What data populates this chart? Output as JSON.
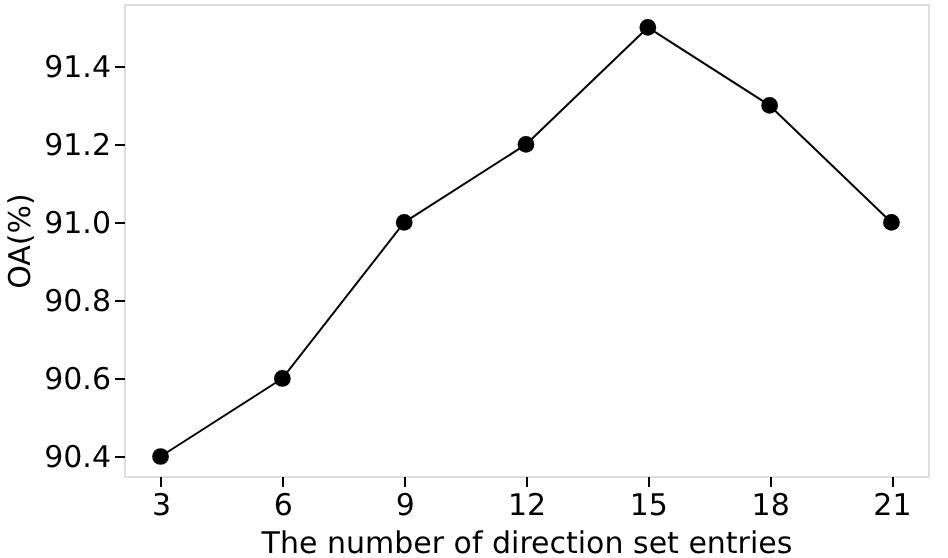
{
  "chart_data": {
    "type": "line",
    "xlabel": "The number of direction set entries",
    "ylabel": "OA(%)",
    "x": [
      3,
      6,
      9,
      12,
      15,
      18,
      21
    ],
    "series": [
      {
        "color": "#000000",
        "values": [
          90.4,
          90.6,
          91.0,
          91.2,
          91.5,
          91.3,
          91.0
        ]
      }
    ],
    "xlim": [
      2.1,
      21.9
    ],
    "ylim": [
      90.35,
      91.56
    ],
    "xticks": [
      3,
      6,
      9,
      12,
      15,
      18,
      21
    ],
    "yticks": [
      {
        "value": 90.4,
        "label": "90.4"
      },
      {
        "value": 90.6,
        "label": "90.6"
      },
      {
        "value": 90.8,
        "label": "90.8"
      },
      {
        "value": 91.0,
        "label": "91.0"
      },
      {
        "value": 91.2,
        "label": "91.2"
      },
      {
        "value": 91.4,
        "label": "91.4"
      }
    ],
    "grid": false,
    "marker": "circle",
    "line_style": "solid"
  }
}
